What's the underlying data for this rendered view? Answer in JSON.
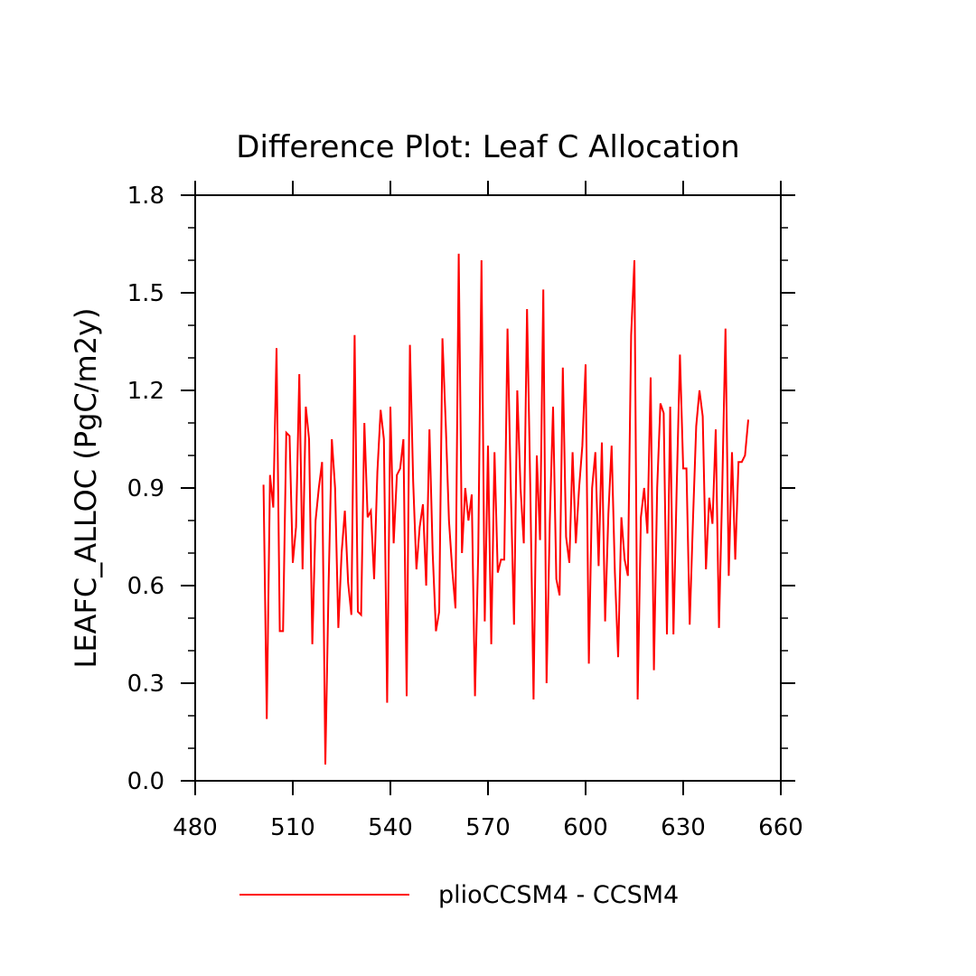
{
  "chart_data": {
    "type": "line",
    "title": "Difference Plot: Leaf C Allocation",
    "xlabel": "",
    "ylabel": "LEAFC_ALLOC  (PgC/m2y)",
    "xlim": [
      480,
      660
    ],
    "ylim": [
      0.0,
      1.8
    ],
    "x_ticks": [
      480,
      510,
      540,
      570,
      600,
      630,
      660
    ],
    "x_tick_labels": [
      "480",
      "510",
      "540",
      "570",
      "600",
      "630",
      "660"
    ],
    "y_ticks": [
      0.0,
      0.3,
      0.6,
      0.9,
      1.2,
      1.5,
      1.8
    ],
    "y_tick_labels": [
      "0.0",
      "0.3",
      "0.6",
      "0.9",
      "1.2",
      "1.5",
      "1.8"
    ],
    "grid": false,
    "legend_position": "bottom",
    "series": [
      {
        "name": "plioCCSM4 - CCSM4",
        "color": "#ff0000",
        "x": [
          501,
          502,
          503,
          504,
          505,
          506,
          507,
          508,
          509,
          510,
          511,
          512,
          513,
          514,
          515,
          516,
          517,
          518,
          519,
          520,
          521,
          522,
          523,
          524,
          525,
          526,
          527,
          528,
          529,
          530,
          531,
          532,
          533,
          534,
          535,
          536,
          537,
          538,
          539,
          540,
          541,
          542,
          543,
          544,
          545,
          546,
          547,
          548,
          549,
          550,
          551,
          552,
          553,
          554,
          555,
          556,
          557,
          558,
          559,
          560,
          561,
          562,
          563,
          564,
          565,
          566,
          567,
          568,
          569,
          570,
          571,
          572,
          573,
          574,
          575,
          576,
          577,
          578,
          579,
          580,
          581,
          582,
          583,
          584,
          585,
          586,
          587,
          588,
          589,
          590,
          591,
          592,
          593,
          594,
          595,
          596,
          597,
          598,
          599,
          600,
          601,
          602,
          603,
          604,
          605,
          606,
          607,
          608,
          609,
          610,
          611,
          612,
          613,
          614,
          615,
          616,
          617,
          618,
          619,
          620,
          621,
          622,
          623,
          624,
          625,
          626,
          627,
          628,
          629,
          630,
          631,
          632,
          633,
          634,
          635,
          636,
          637,
          638,
          639,
          640,
          641,
          642,
          643,
          644,
          645,
          646,
          647,
          648,
          649,
          650
        ],
        "values": [
          0.91,
          0.19,
          0.94,
          0.84,
          1.33,
          0.46,
          0.46,
          1.07,
          1.06,
          0.67,
          0.78,
          1.25,
          0.65,
          1.15,
          1.05,
          0.42,
          0.8,
          0.9,
          0.98,
          0.05,
          0.6,
          1.05,
          0.9,
          0.47,
          0.7,
          0.83,
          0.61,
          0.51,
          1.37,
          0.52,
          0.51,
          1.1,
          0.81,
          0.83,
          0.62,
          0.95,
          1.14,
          1.05,
          0.24,
          1.15,
          0.73,
          0.94,
          0.96,
          1.05,
          0.26,
          1.34,
          0.92,
          0.65,
          0.78,
          0.85,
          0.6,
          1.08,
          0.7,
          0.46,
          0.52,
          1.36,
          1.1,
          0.8,
          0.65,
          0.53,
          1.62,
          0.7,
          0.9,
          0.8,
          0.88,
          0.26,
          0.7,
          1.6,
          0.49,
          1.03,
          0.42,
          1.01,
          0.64,
          0.68,
          0.68,
          1.39,
          0.9,
          0.48,
          1.2,
          0.9,
          0.73,
          1.45,
          0.9,
          0.25,
          1.0,
          0.74,
          1.51,
          0.3,
          0.8,
          1.15,
          0.62,
          0.57,
          1.27,
          0.75,
          0.67,
          1.01,
          0.73,
          0.9,
          1.03,
          1.28,
          0.36,
          0.9,
          1.01,
          0.66,
          1.04,
          0.49,
          0.82,
          1.03,
          0.64,
          0.38,
          0.81,
          0.68,
          0.63,
          1.37,
          1.6,
          0.25,
          0.81,
          0.9,
          0.76,
          1.24,
          0.34,
          0.9,
          1.16,
          1.13,
          0.45,
          1.15,
          0.45,
          0.9,
          1.31,
          0.96,
          0.96,
          0.48,
          0.8,
          1.09,
          1.2,
          1.12,
          0.65,
          0.87,
          0.79,
          1.08,
          0.47,
          0.9,
          1.39,
          0.63,
          1.01,
          0.68,
          0.98,
          0.98,
          1.0,
          1.11
        ]
      }
    ]
  }
}
